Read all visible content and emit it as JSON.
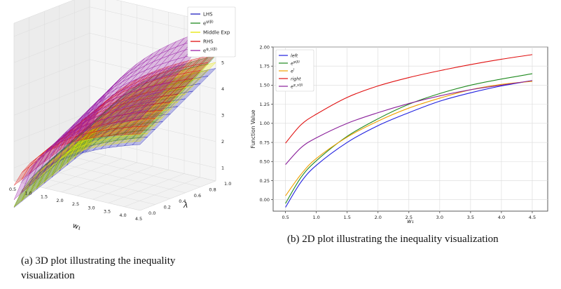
{
  "figure_a": {
    "caption_label": "(a)",
    "caption_text": "3D plot illustrating the inequality visualization",
    "legend": [
      {
        "label": "LHS",
        "color": "#1f1fbf"
      },
      {
        "label": "e^{ψ(β)}",
        "color": "#1f8a1f"
      },
      {
        "label": "Middle Exp",
        "color": "#e6e600"
      },
      {
        "label": "RHS",
        "color": "#e01010"
      },
      {
        "label": "e^{φ_s(β)}",
        "color": "#9a1fa8"
      }
    ],
    "x_label": "w₁",
    "y_label": "λ",
    "x_ticks": [
      "0.5",
      "1.0",
      "1.5",
      "2.0",
      "2.5",
      "3.0",
      "3.5",
      "4.0",
      "4.5"
    ],
    "y_ticks": [
      "0.0",
      "0.2",
      "0.4",
      "0.6",
      "0.8",
      "1.0"
    ],
    "z_ticks": [
      "1",
      "2",
      "3",
      "4",
      "5",
      "6"
    ]
  },
  "figure_b": {
    "caption_label": "(b)",
    "caption_text": "2D plot illustrating the inequality visualization"
  },
  "chart_data": [
    {
      "type": "surface3d",
      "title": "",
      "xlabel": "w₁",
      "ylabel": "λ",
      "zlabel": "",
      "xlim": [
        0.5,
        4.5
      ],
      "ylim": [
        0.0,
        1.0
      ],
      "zlim": [
        0.5,
        6.5
      ],
      "series": [
        {
          "name": "LHS",
          "color": "#1f1fbf"
        },
        {
          "name": "e^{ψ(β)}",
          "color": "#1f8a1f"
        },
        {
          "name": "Middle Exp",
          "color": "#e6e600"
        },
        {
          "name": "RHS",
          "color": "#e01010"
        },
        {
          "name": "e^{φ_s(β)}",
          "color": "#9a1fa8"
        }
      ]
    },
    {
      "type": "line",
      "title": "",
      "xlabel": "w₁",
      "ylabel": "Function Value",
      "xlim": [
        0.3,
        4.75
      ],
      "ylim": [
        -0.15,
        2.0
      ],
      "x_ticks": [
        0.5,
        1.0,
        1.5,
        2.0,
        2.5,
        3.0,
        3.5,
        4.0,
        4.5
      ],
      "x_tick_labels": [
        "0.5",
        "1.0",
        "1.5",
        "2.0",
        "2.5",
        "3.0",
        "3.5",
        "4.0",
        "4.5"
      ],
      "y_ticks": [
        0.0,
        0.25,
        0.5,
        0.75,
        1.0,
        1.25,
        1.5,
        1.75,
        2.0
      ],
      "y_tick_labels": [
        "0.00",
        "0.25",
        "0.50",
        "0.75",
        "1.00",
        "1.25",
        "1.50",
        "1.75",
        "2.00"
      ],
      "grid": true,
      "legend_position": "top-left",
      "x": [
        0.5,
        0.75,
        1.0,
        1.5,
        2.0,
        2.5,
        3.0,
        3.5,
        4.0,
        4.5
      ],
      "series": [
        {
          "name": "left",
          "color": "#1f1fdf",
          "values": [
            -0.1,
            0.23,
            0.45,
            0.75,
            0.97,
            1.14,
            1.29,
            1.4,
            1.49,
            1.56
          ]
        },
        {
          "name": "e^{ψ(β)}",
          "color": "#1f8a1f",
          "values": [
            -0.05,
            0.29,
            0.51,
            0.83,
            1.06,
            1.25,
            1.39,
            1.5,
            1.58,
            1.65
          ]
        },
        {
          "name": "e^{l}",
          "color": "#f0a000",
          "values": [
            0.05,
            0.33,
            0.54,
            0.82,
            1.03,
            1.2,
            1.33,
            1.44,
            1.51,
            1.55
          ]
        },
        {
          "name": "right",
          "color": "#e01010",
          "values": [
            0.74,
            0.98,
            1.12,
            1.34,
            1.49,
            1.6,
            1.69,
            1.77,
            1.84,
            1.9
          ]
        },
        {
          "name": "e^{φ_s(β)}",
          "color": "#8a1f9a",
          "values": [
            0.46,
            0.68,
            0.81,
            1.0,
            1.14,
            1.26,
            1.36,
            1.44,
            1.5,
            1.56
          ]
        }
      ]
    }
  ]
}
